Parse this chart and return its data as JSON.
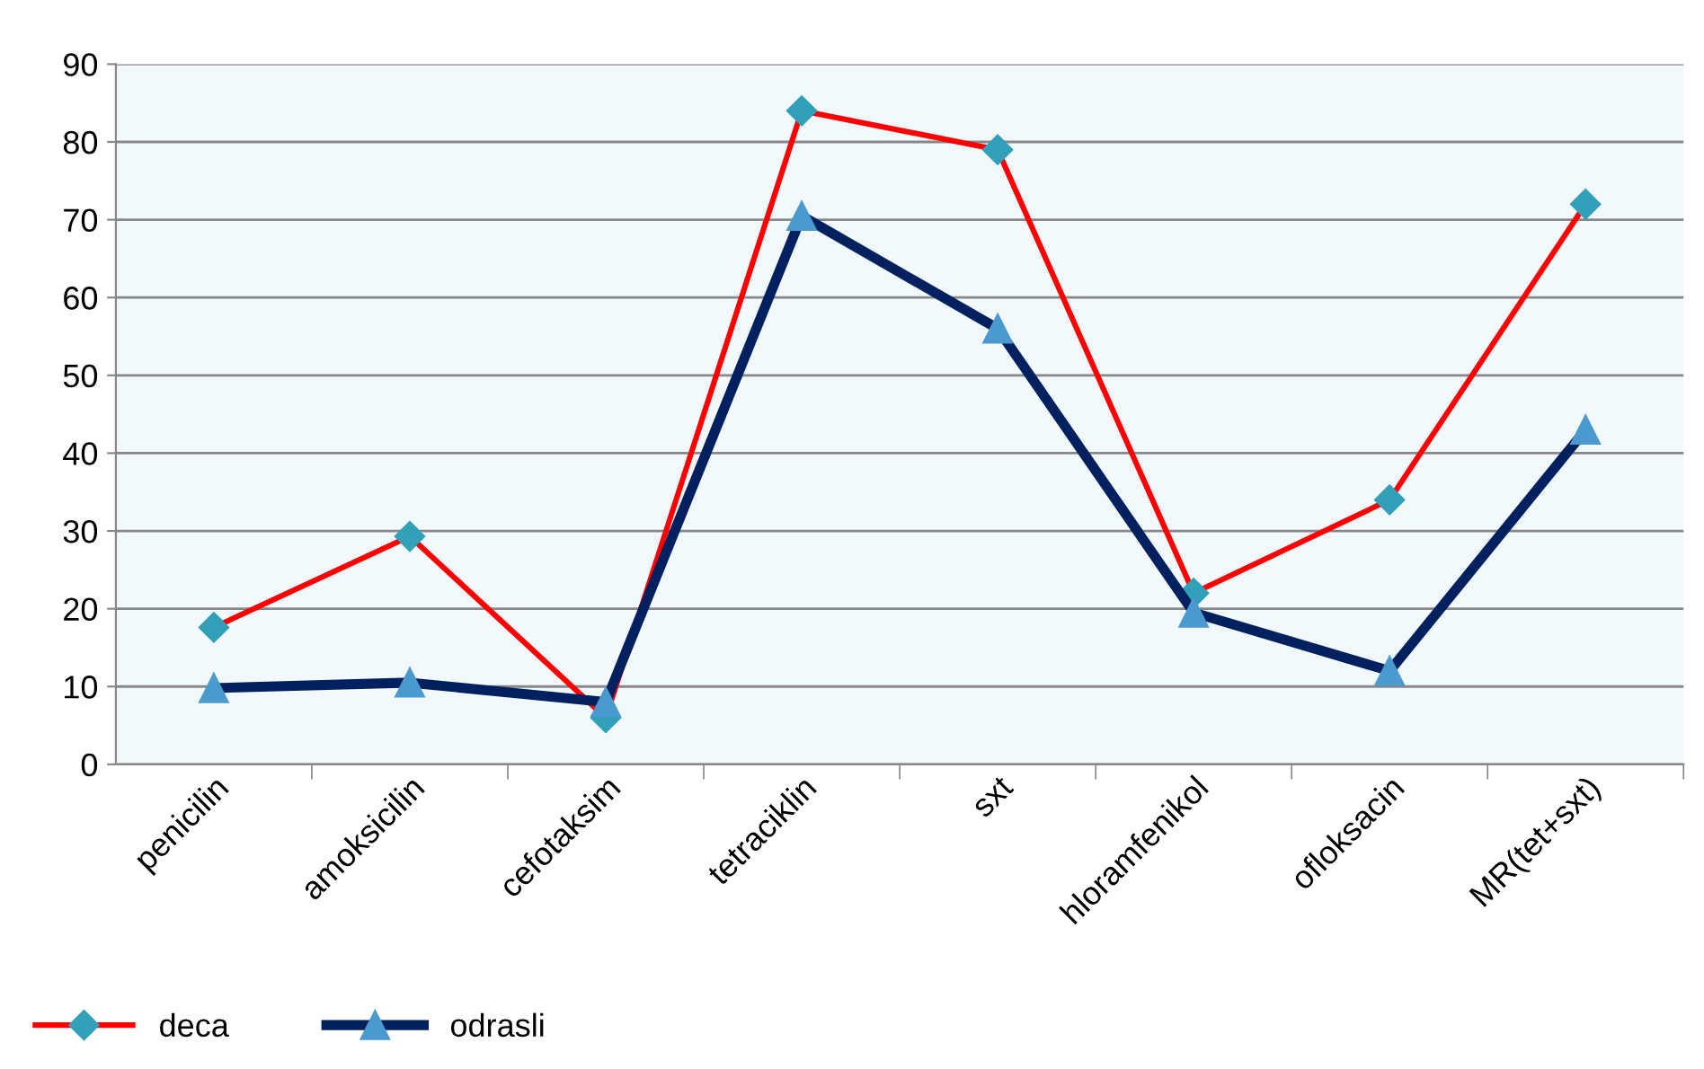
{
  "chart_data": {
    "type": "line",
    "categories": [
      "penicilin",
      "amoksicilin",
      "cefotaksim",
      "tetraciklin",
      "sxt",
      "hloramfenikol",
      "ofloksacin",
      "MR(tet+sxt)"
    ],
    "series": [
      {
        "name": "deca",
        "color": "#ff0000",
        "marker": "diamond",
        "values": [
          17.6,
          29.3,
          6,
          84,
          79,
          22,
          34,
          72
        ]
      },
      {
        "name": "odrasli",
        "color": "#002060",
        "marker": "triangle",
        "values": [
          9.8,
          10.5,
          8,
          70.5,
          56,
          19.5,
          12,
          43
        ]
      }
    ],
    "ylim": [
      0,
      90
    ],
    "yticks": [
      0,
      10,
      20,
      30,
      40,
      50,
      60,
      70,
      80,
      90
    ],
    "grid": "y",
    "legend": "bottom left",
    "line_style": "solid"
  }
}
